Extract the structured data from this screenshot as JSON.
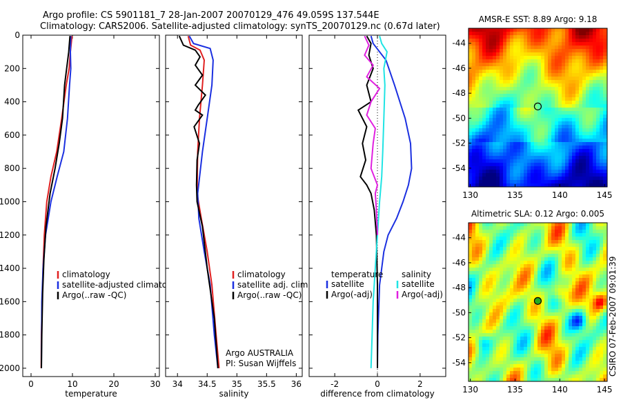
{
  "header": {
    "line1": "Argo profile: CS 5901181_7 28-Jan-2007 20070129_476 49.059S 137.544E",
    "line2": "Climatology: CARS2006. Satellite-adjusted climatology: synTS_20070129.nc (0.67d later)"
  },
  "side_label": "CSIRO 07-Feb-2007 09:01:39",
  "colors": {
    "red": "#e02020",
    "blue": "#1a2fe0",
    "black": "#000000",
    "cyan": "#1fe4e4",
    "magenta": "#e020e0"
  },
  "chart_data": [
    {
      "id": "temperature",
      "type": "line",
      "xlabel": "temperature",
      "xlim": [
        -2,
        31
      ],
      "xticks": [
        0,
        10,
        20,
        30
      ],
      "ylim": [
        2050,
        0
      ],
      "yticks": [
        0,
        200,
        400,
        600,
        800,
        1000,
        1200,
        1400,
        1600,
        1800,
        2000
      ],
      "legend": [
        "climatology",
        "satellite-adjusted climatology",
        "Argo(..raw -QC)"
      ],
      "series": [
        {
          "name": "climatology",
          "color": "red",
          "x": [
            9.9,
            9.5,
            9.2,
            8.5,
            7.4,
            6.2,
            4.8,
            3.8,
            3.2,
            2.9,
            2.7,
            2.5,
            2.45
          ],
          "y": [
            5,
            100,
            200,
            300,
            500,
            700,
            850,
            1000,
            1200,
            1400,
            1600,
            1800,
            2000
          ]
        },
        {
          "name": "satellite-adjusted climatology",
          "color": "blue",
          "x": [
            9.6,
            9.5,
            9.6,
            9.3,
            8.8,
            7.9,
            6.3,
            4.8,
            3.5,
            2.9,
            2.6,
            2.5
          ],
          "y": [
            5,
            100,
            200,
            300,
            500,
            700,
            850,
            1000,
            1200,
            1400,
            1600,
            2000
          ]
        },
        {
          "name": "Argo(..raw -QC)",
          "color": "black",
          "x": [
            9.4,
            9.1,
            8.6,
            8.1,
            7.6,
            6.8,
            5.8,
            4.6,
            3.6,
            3.1,
            2.8,
            2.6,
            2.5
          ],
          "y": [
            5,
            100,
            200,
            300,
            500,
            650,
            800,
            950,
            1150,
            1350,
            1550,
            1800,
            2000
          ]
        }
      ]
    },
    {
      "id": "salinity",
      "type": "line",
      "xlabel": "salinity",
      "xlim": [
        33.8,
        36.1
      ],
      "xticks": [
        34,
        34.5,
        35,
        35.5,
        36
      ],
      "ylim": [
        2050,
        0
      ],
      "legend": [
        "climatology",
        "satellite adj. clim.",
        "Argo(..raw -QC)"
      ],
      "annotation": [
        "Argo AUSTRALIA",
        "PI: Susan Wijffels"
      ],
      "series": [
        {
          "name": "climatology",
          "color": "red",
          "x": [
            34.18,
            34.22,
            34.38,
            34.45,
            34.42,
            34.37,
            34.34,
            34.33,
            34.4,
            34.5,
            34.58,
            34.65,
            34.7
          ],
          "y": [
            5,
            60,
            90,
            150,
            300,
            500,
            700,
            950,
            1100,
            1300,
            1500,
            1800,
            2000
          ]
        },
        {
          "name": "satellite adj. clim.",
          "color": "blue",
          "x": [
            34.2,
            34.27,
            34.55,
            34.6,
            34.58,
            34.5,
            34.42,
            34.34,
            34.36,
            34.45,
            34.55,
            34.62,
            34.68
          ],
          "y": [
            5,
            50,
            80,
            150,
            300,
            500,
            700,
            950,
            1100,
            1300,
            1500,
            1800,
            2000
          ]
        },
        {
          "name": "Argo(..raw -QC)",
          "color": "black",
          "x": [
            34.03,
            34.1,
            34.3,
            34.38,
            34.3,
            34.42,
            34.3,
            34.47,
            34.35,
            34.3,
            34.42,
            34.28,
            34.37,
            34.33,
            34.32,
            34.33,
            34.42,
            34.5,
            34.62,
            34.68
          ],
          "y": [
            5,
            60,
            90,
            130,
            180,
            240,
            300,
            360,
            420,
            450,
            480,
            550,
            650,
            750,
            900,
            1000,
            1150,
            1400,
            1700,
            2000
          ]
        }
      ]
    },
    {
      "id": "difference",
      "type": "line",
      "xlabel": "difference from climatology",
      "xlim": [
        -3.2,
        3.2
      ],
      "xticks": [
        -2,
        0,
        2
      ],
      "ylim": [
        2050,
        0
      ],
      "legend_left": [
        "temperature",
        "satellite",
        "Argo(-adj)"
      ],
      "legend_right": [
        "salinity",
        "satellite",
        "Argo(-adj)"
      ],
      "series": [
        {
          "name": "temperature satellite",
          "color": "blue",
          "x": [
            -0.3,
            -0.2,
            0.4,
            0.8,
            1.3,
            1.55,
            1.6,
            1.45,
            1.2,
            0.9,
            0.5,
            0.3,
            0.1,
            0.02,
            0.0
          ],
          "y": [
            5,
            50,
            150,
            300,
            500,
            650,
            800,
            900,
            1000,
            1100,
            1200,
            1300,
            1500,
            1800,
            2000
          ]
        },
        {
          "name": "temperature Argo(-adj)",
          "color": "black",
          "x": [
            -0.5,
            -0.3,
            -0.4,
            -0.2,
            -0.5,
            -0.3,
            -0.9,
            -0.5,
            -0.7,
            -0.55,
            -0.8,
            -0.5,
            -0.3,
            -0.15,
            -0.05,
            0.0,
            0.0
          ],
          "y": [
            5,
            50,
            120,
            200,
            300,
            400,
            450,
            550,
            650,
            750,
            850,
            900,
            950,
            1050,
            1200,
            1500,
            2000
          ]
        },
        {
          "name": "salinity satellite",
          "color": "cyan",
          "x": [
            0.1,
            0.2,
            0.45,
            0.3,
            0.35,
            0.3,
            0.25,
            0.2,
            0.1,
            0.0,
            -0.1,
            -0.2,
            -0.25,
            -0.3
          ],
          "y": [
            5,
            50,
            100,
            200,
            300,
            500,
            700,
            850,
            1000,
            1200,
            1400,
            1600,
            1800,
            2000
          ]
        },
        {
          "name": "salinity Argo(-adj)",
          "color": "magenta",
          "x": [
            -0.6,
            -0.4,
            -0.6,
            -0.2,
            -0.5,
            0.1,
            -0.3,
            -0.5,
            -0.1,
            -0.2,
            -0.3,
            0.0,
            -0.1,
            -0.05,
            0.0
          ],
          "y": [
            5,
            60,
            120,
            180,
            250,
            320,
            400,
            480,
            560,
            650,
            800,
            900,
            950,
            1050,
            1200
          ]
        }
      ]
    },
    {
      "id": "sst",
      "type": "heatmap",
      "title": "AMSR-E SST: 8.89 Argo: 9.18",
      "xlim": [
        129.8,
        145.3
      ],
      "ylim": [
        -55.5,
        -42.8
      ],
      "xticks": [
        130,
        135,
        140,
        145
      ],
      "yticks": [
        -44,
        -46,
        -48,
        -50,
        -52,
        -54
      ],
      "marker": {
        "lon": 137.544,
        "lat": -49.059
      }
    },
    {
      "id": "sla",
      "type": "heatmap",
      "title": "Altimetric SLA: 0.12 Argo: 0.005",
      "xlim": [
        129.8,
        145.3
      ],
      "ylim": [
        -55.5,
        -42.8
      ],
      "xticks": [
        130,
        135,
        140,
        145
      ],
      "yticks": [
        -44,
        -46,
        -48,
        -50,
        -52,
        -54
      ],
      "marker": {
        "lon": 137.544,
        "lat": -49.059
      }
    }
  ]
}
